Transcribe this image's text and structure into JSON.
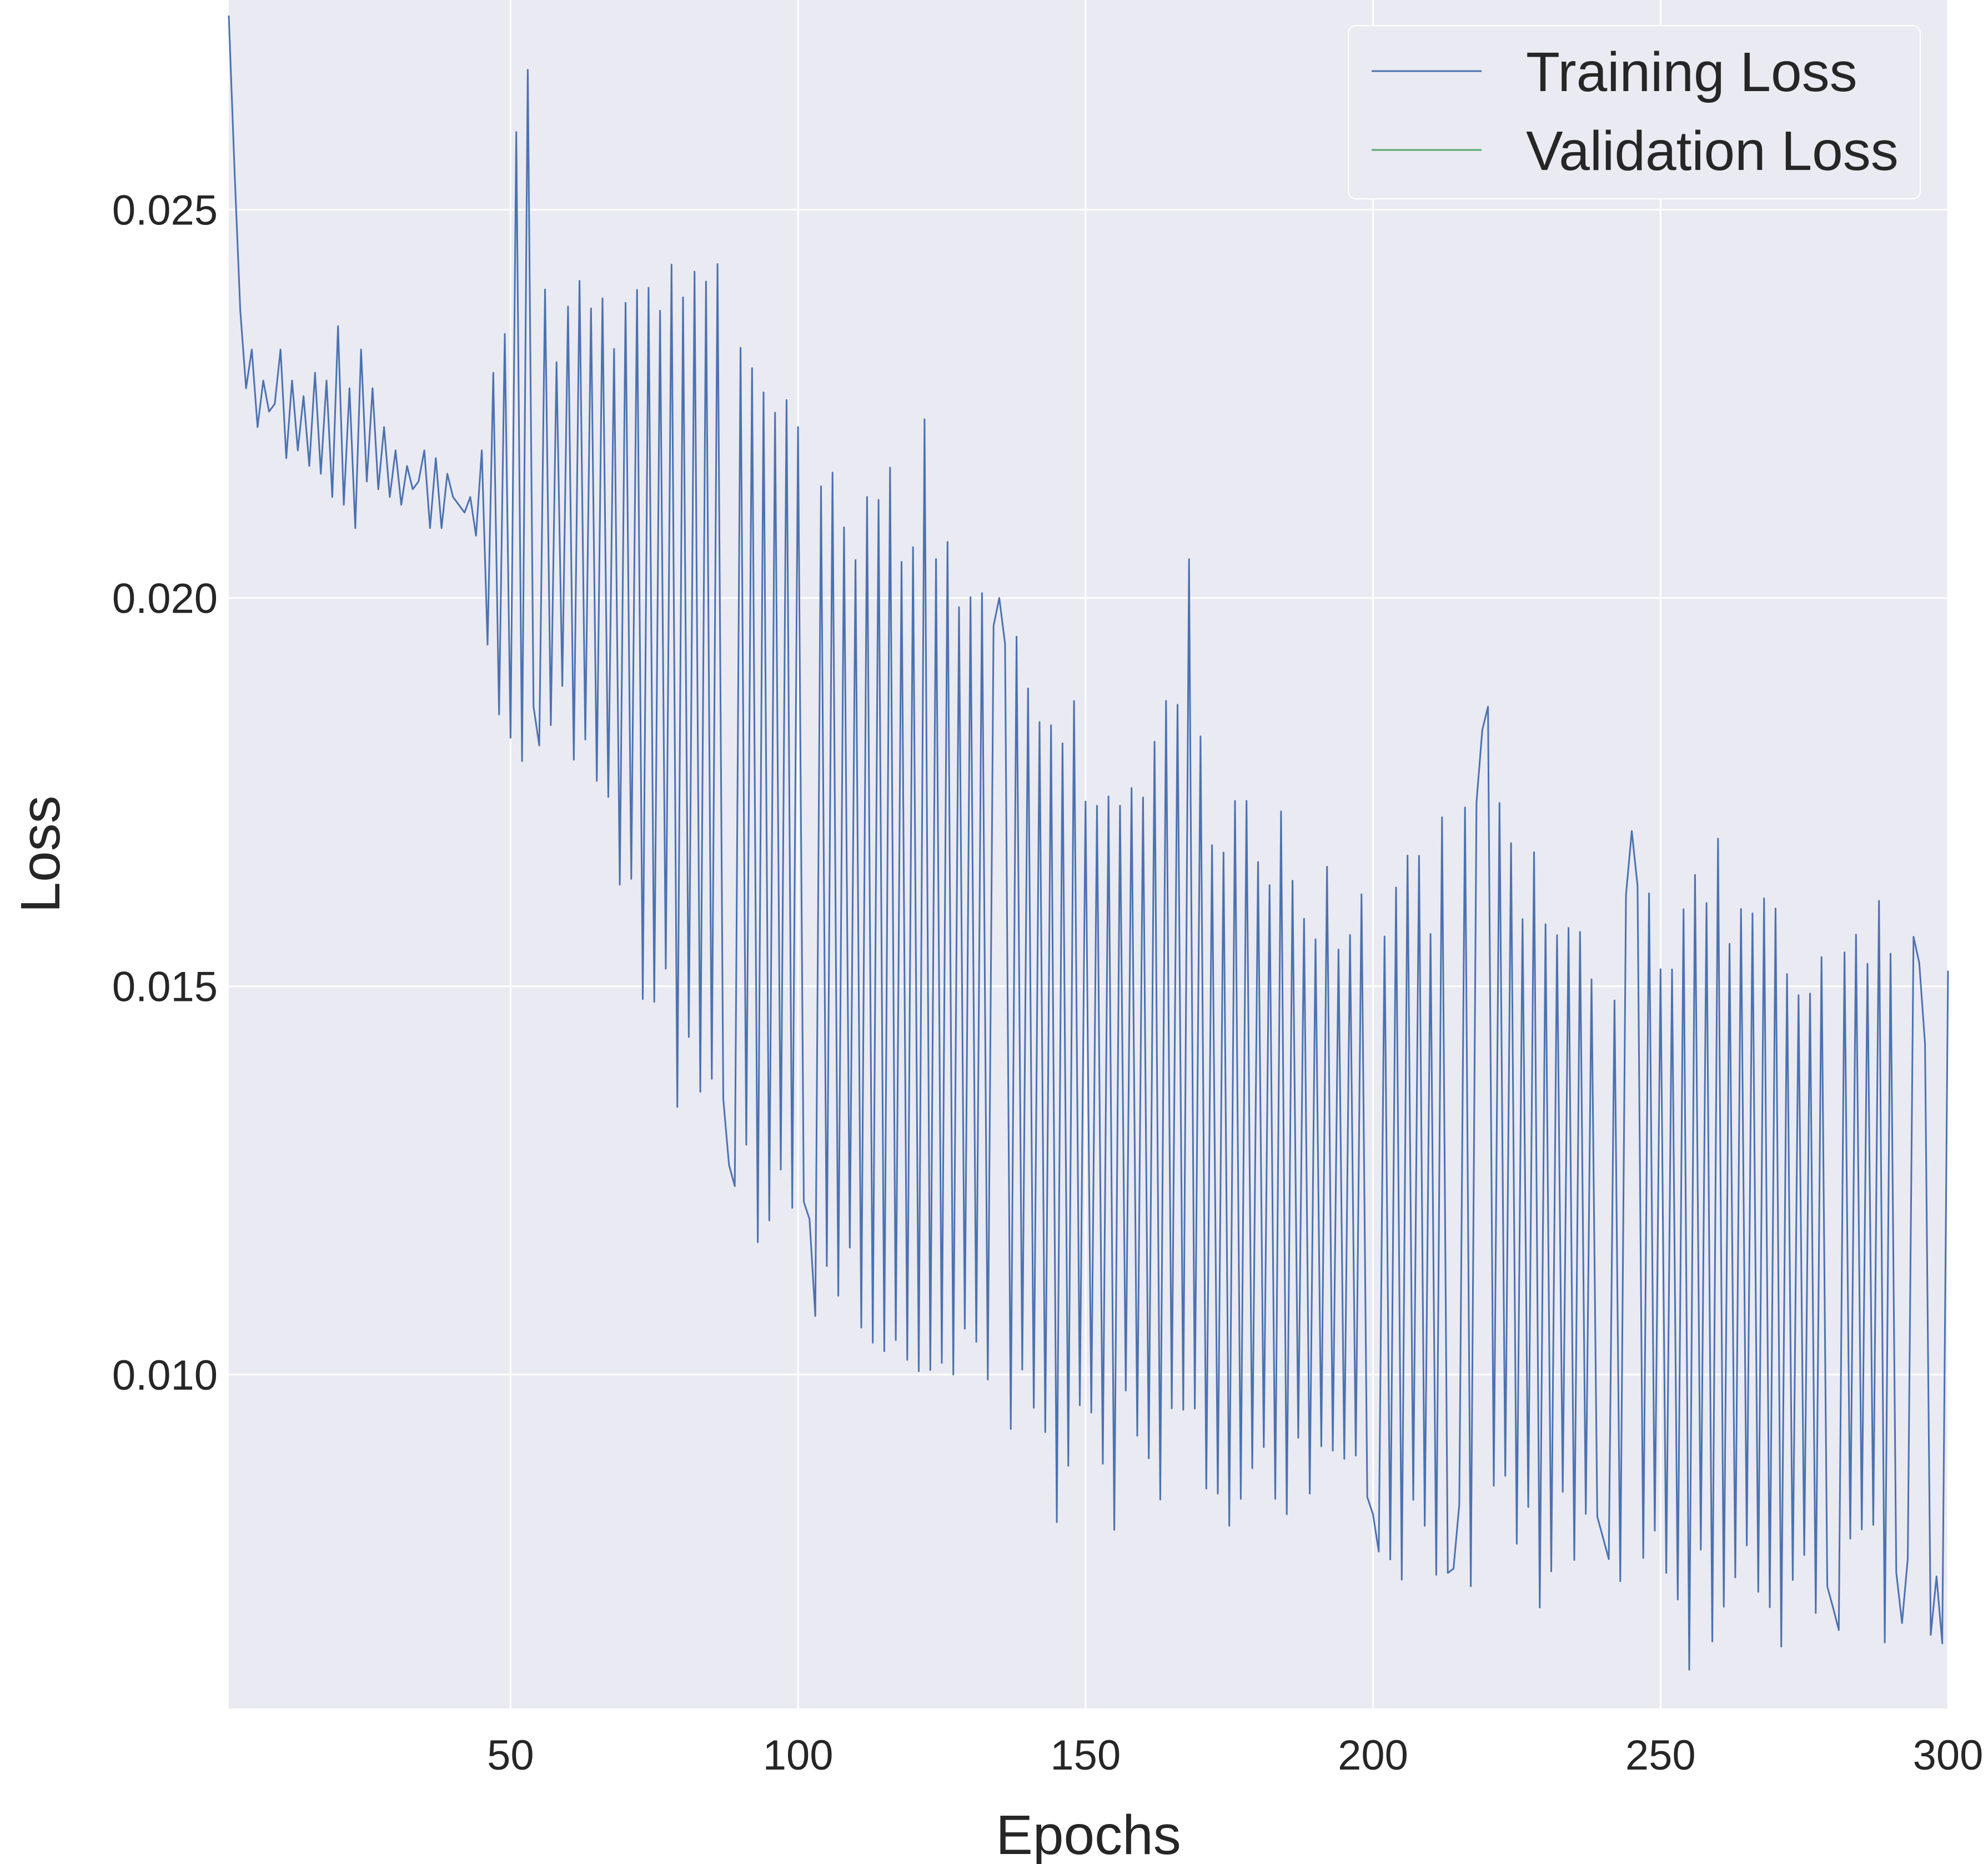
{
  "chart_data": {
    "type": "line",
    "title": "",
    "xlabel": "Epochs",
    "ylabel": "Loss",
    "xlim": [
      1,
      300
    ],
    "ylim": [
      0.0057,
      0.0277
    ],
    "xticks": [
      50,
      100,
      150,
      200,
      250,
      300
    ],
    "yticks": [
      0.01,
      0.015,
      0.02,
      0.025
    ],
    "ytick_labels": [
      "0.010",
      "0.015",
      "0.020",
      "0.025"
    ],
    "grid": true,
    "background": "#eaeaf2",
    "grid_color": "#ffffff",
    "legend_position": "top-right",
    "series": [
      {
        "name": "Training Loss",
        "color": "#4c72b0",
        "anchors": [
          [
            1,
            0.0275
          ],
          [
            2,
            0.0255
          ],
          [
            3,
            0.0237
          ],
          [
            4,
            0.0227
          ],
          [
            5,
            0.0232
          ],
          [
            6,
            0.0222
          ],
          [
            7,
            0.0228
          ],
          [
            8,
            0.0224
          ],
          [
            9,
            0.0225
          ],
          [
            10,
            0.0232
          ],
          [
            11,
            0.0218
          ],
          [
            12,
            0.0228
          ],
          [
            13,
            0.0219
          ],
          [
            14,
            0.0226
          ],
          [
            15,
            0.0217
          ],
          [
            16,
            0.0229
          ],
          [
            17,
            0.0216
          ],
          [
            18,
            0.0228
          ],
          [
            19,
            0.0213
          ],
          [
            20,
            0.0235
          ],
          [
            21,
            0.0212
          ],
          [
            22,
            0.0227
          ],
          [
            23,
            0.0209
          ],
          [
            24,
            0.0232
          ],
          [
            25,
            0.0215
          ],
          [
            26,
            0.0227
          ],
          [
            27,
            0.0214
          ],
          [
            28,
            0.0222
          ],
          [
            29,
            0.0213
          ],
          [
            30,
            0.0219
          ],
          [
            31,
            0.0212
          ],
          [
            32,
            0.0217
          ],
          [
            33,
            0.0214
          ],
          [
            34,
            0.0215
          ],
          [
            35,
            0.0219
          ],
          [
            36,
            0.0209
          ],
          [
            37,
            0.0218
          ],
          [
            38,
            0.0209
          ],
          [
            39,
            0.0216
          ],
          [
            40,
            0.0213
          ],
          [
            41,
            0.0212
          ],
          [
            42,
            0.0211
          ],
          [
            43,
            0.0213
          ],
          [
            44,
            0.0208
          ],
          [
            45,
            0.0219
          ],
          [
            46,
            0.0194
          ],
          [
            47,
            0.0229
          ],
          [
            48,
            0.0185
          ],
          [
            49,
            0.0234
          ],
          [
            50,
            0.0182
          ],
          [
            51,
            0.026
          ],
          [
            52,
            0.0179
          ],
          [
            53,
            0.0268
          ],
          [
            54,
            0.0186
          ],
          [
            70,
            0.0238
          ],
          [
            75,
            0.0148
          ],
          [
            86,
            0.0243
          ],
          [
            88,
            0.0127
          ],
          [
            100,
            0.0222
          ],
          [
            102,
            0.012
          ],
          [
            112,
            0.0213
          ],
          [
            115,
            0.0103
          ],
          [
            122,
            0.0223
          ],
          [
            127,
            0.01
          ],
          [
            135,
            0.02
          ],
          [
            137,
            0.0093
          ],
          [
            145,
            0.0081
          ],
          [
            155,
            0.008
          ],
          [
            168,
            0.0205
          ],
          [
            180,
            0.0166
          ],
          [
            183,
            0.0084
          ],
          [
            200,
            0.0082
          ],
          [
            214,
            0.0075
          ],
          [
            219,
            0.0183
          ],
          [
            220,
            0.0186
          ],
          [
            229,
            0.007
          ],
          [
            240,
            0.0079
          ],
          [
            245,
            0.017
          ],
          [
            255,
            0.0062
          ],
          [
            260,
            0.0169
          ],
          [
            265,
            0.0078
          ],
          [
            280,
            0.007
          ],
          [
            288,
            0.0161
          ],
          [
            292,
            0.0068
          ],
          [
            295,
            0.0153
          ],
          [
            298,
            0.0074
          ],
          [
            300,
            0.0152
          ]
        ]
      },
      {
        "name": "Validation Loss",
        "color": "#55a868",
        "anchors": []
      }
    ]
  }
}
